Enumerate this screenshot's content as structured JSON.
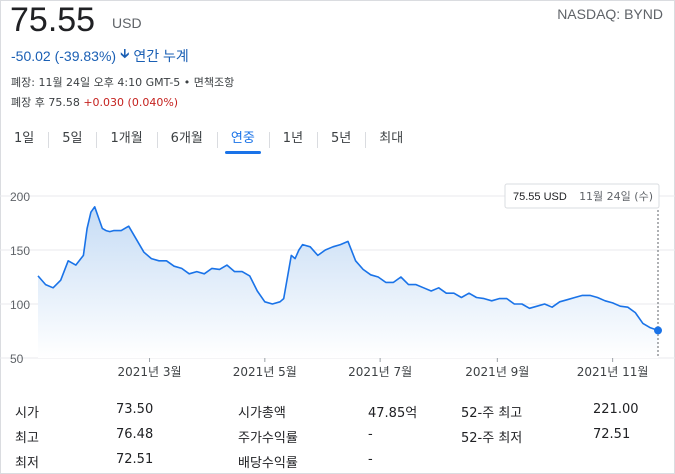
{
  "quote": {
    "price": "75.55",
    "currency": "USD",
    "ticker": "NASDAQ: BYND",
    "change": "-50.02 (-39.83%)",
    "change_period": "연간 누계",
    "meta": "폐장: 11월 24일 오후 4:10 GMT-5 • 면책조항",
    "after_label": "폐장 후 75.58",
    "after_delta": "+0.030 (0.040%)"
  },
  "tabs": [
    {
      "label": "1일"
    },
    {
      "label": "5일"
    },
    {
      "label": "1개월"
    },
    {
      "label": "6개월"
    },
    {
      "label": "연중",
      "active": true
    },
    {
      "label": "1년"
    },
    {
      "label": "5년"
    },
    {
      "label": "최대"
    }
  ],
  "colors": {
    "line": "#1a73e8",
    "fill_top": "#c6dcf5",
    "fill_bottom": "#ffffff",
    "grid": "#e8eaed",
    "down": "#1a5fb4",
    "up": "#c5221f"
  },
  "chart_data": {
    "type": "area",
    "ylim": [
      50,
      200
    ],
    "yticks": [
      "200",
      "150",
      "100",
      "50"
    ],
    "ytick_values": [
      200,
      150,
      100,
      50
    ],
    "xlim": [
      0,
      328
    ],
    "xticks": [
      {
        "label": "2021년 3월",
        "x": 59
      },
      {
        "label": "2021년 5월",
        "x": 120
      },
      {
        "label": "2021년 7월",
        "x": 181
      },
      {
        "label": "2021년 9월",
        "x": 243
      },
      {
        "label": "2021년 11월",
        "x": 304
      }
    ],
    "tooltip": {
      "value": "75.55 USD",
      "date": "11월 24일 (수)"
    },
    "x": [
      0,
      4,
      8,
      12,
      16,
      20,
      24,
      26,
      28,
      30,
      32,
      34,
      36,
      38,
      40,
      44,
      48,
      52,
      56,
      60,
      64,
      68,
      72,
      76,
      80,
      84,
      88,
      92,
      96,
      100,
      104,
      108,
      112,
      116,
      120,
      124,
      128,
      130,
      132,
      134,
      136,
      138,
      140,
      144,
      148,
      152,
      156,
      160,
      164,
      168,
      172,
      176,
      180,
      184,
      188,
      192,
      196,
      200,
      204,
      208,
      212,
      216,
      220,
      224,
      228,
      232,
      236,
      240,
      244,
      248,
      252,
      256,
      260,
      264,
      268,
      272,
      276,
      280,
      284,
      288,
      292,
      296,
      300,
      304,
      308,
      312,
      316,
      320,
      324,
      328
    ],
    "values": [
      126,
      118,
      115,
      122,
      140,
      136,
      145,
      170,
      185,
      190,
      180,
      170,
      168,
      167,
      168,
      168,
      172,
      160,
      148,
      142,
      140,
      140,
      135,
      133,
      128,
      130,
      128,
      133,
      132,
      136,
      130,
      130,
      126,
      112,
      102,
      100,
      102,
      105,
      125,
      145,
      142,
      150,
      155,
      153,
      145,
      150,
      153,
      155,
      158,
      140,
      132,
      127,
      125,
      120,
      120,
      125,
      118,
      118,
      115,
      112,
      115,
      110,
      110,
      106,
      110,
      106,
      105,
      103,
      105,
      105,
      100,
      100,
      96,
      98,
      100,
      97,
      102,
      104,
      106,
      108,
      108,
      106,
      103,
      101,
      98,
      97,
      92,
      82,
      78,
      75.55
    ]
  },
  "stats": [
    {
      "label": "시가",
      "value": "73.50"
    },
    {
      "label": "최고",
      "value": "76.48"
    },
    {
      "label": "최저",
      "value": "72.51"
    },
    {
      "label": "시가총액",
      "value": "47.85억"
    },
    {
      "label": "주가수익률",
      "value": "-"
    },
    {
      "label": "배당수익률",
      "value": "-"
    },
    {
      "label": "52-주 최고",
      "value": "221.00"
    },
    {
      "label": "52-주 최저",
      "value": "72.51"
    }
  ]
}
